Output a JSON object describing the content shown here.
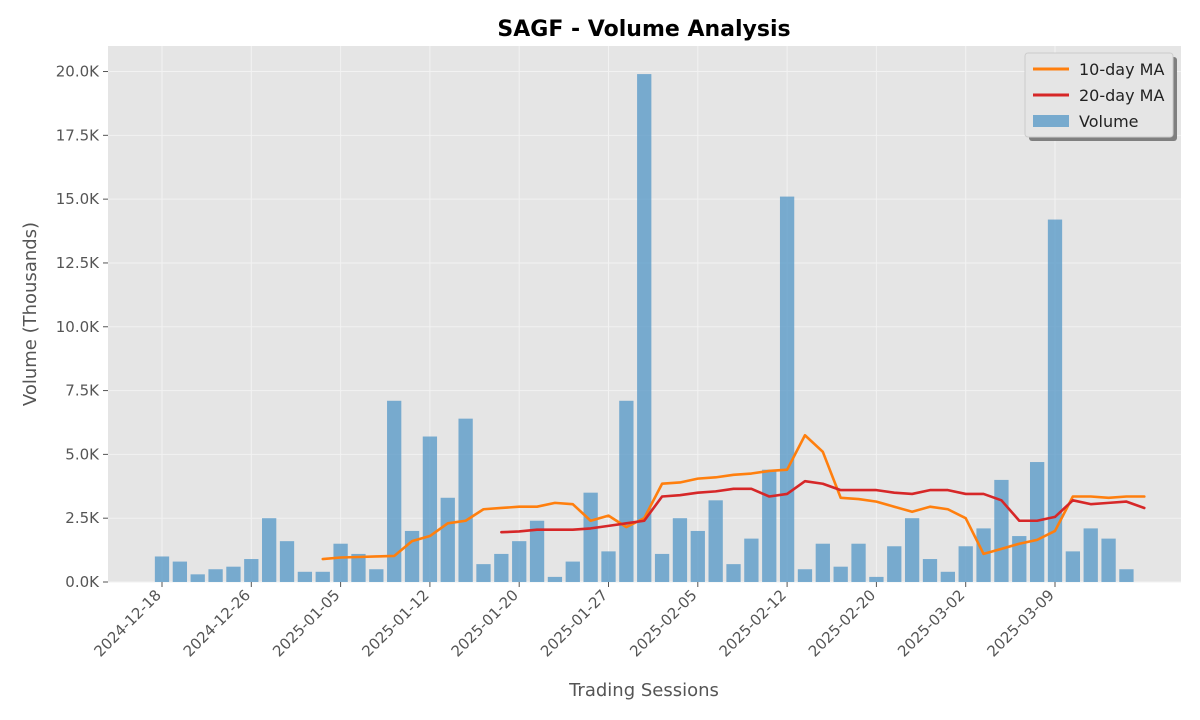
{
  "chart_data": {
    "type": "bar",
    "title": "SAGF - Volume Analysis",
    "xlabel": "Trading Sessions",
    "ylabel": "Volume (Thousands)",
    "ylim": [
      0,
      21000
    ],
    "grid": true,
    "legend_position": "top-right",
    "colors": {
      "background": "#e5e5e5",
      "grid": "#f2f2f2",
      "volume": "#5b9bc8",
      "ma10": "#ff7f0e",
      "ma20": "#d62728"
    },
    "y_ticks": [
      0,
      2500,
      5000,
      7500,
      10000,
      12500,
      15000,
      17500,
      20000
    ],
    "y_tick_labels": [
      "0.0K",
      "2.5K",
      "5.0K",
      "7.5K",
      "10.0K",
      "12.5K",
      "15.0K",
      "17.5K",
      "20.0K"
    ],
    "x_tick_labels": [
      {
        "index": 0,
        "label": "2024-12-18"
      },
      {
        "index": 5,
        "label": "2024-12-26"
      },
      {
        "index": 10,
        "label": "2025-01-05"
      },
      {
        "index": 15,
        "label": "2025-01-12"
      },
      {
        "index": 20,
        "label": "2025-01-20"
      },
      {
        "index": 25,
        "label": "2025-01-27"
      },
      {
        "index": 30,
        "label": "2025-02-05"
      },
      {
        "index": 35,
        "label": "2025-02-12"
      },
      {
        "index": 40,
        "label": "2025-02-20"
      },
      {
        "index": 45,
        "label": "2025-03-02"
      },
      {
        "index": 50,
        "label": "2025-03-09"
      }
    ],
    "series": [
      {
        "name": "Volume",
        "kind": "bar",
        "values": [
          1000,
          800,
          300,
          500,
          600,
          900,
          2500,
          1600,
          400,
          400,
          1500,
          1100,
          500,
          7100,
          2000,
          5700,
          3300,
          6400,
          700,
          1100,
          1600,
          2400,
          200,
          800,
          3500,
          1200,
          7100,
          19900,
          1100,
          2500,
          2000,
          3200,
          700,
          1700,
          4400,
          15100,
          500,
          1500,
          600,
          1500,
          200,
          1400,
          2500,
          900,
          400,
          1400,
          2100,
          4000,
          1800,
          4700,
          14200,
          1200,
          2100,
          1700,
          500
        ]
      },
      {
        "name": "10-day MA",
        "kind": "line",
        "start_index": 9,
        "values": [
          900,
          960,
          980,
          1000,
          1020,
          1600,
          1800,
          2300,
          2400,
          2850,
          2900,
          2950,
          2950,
          3100,
          3050,
          2400,
          2600,
          2150,
          2500,
          3850,
          3900,
          4050,
          4100,
          4200,
          4250,
          4350,
          4400,
          5750,
          5100,
          3300,
          3250,
          3150,
          2950,
          2750,
          2950,
          2850,
          2500,
          1100,
          1300,
          1500,
          1650,
          2000,
          3350,
          3350,
          3300,
          3350,
          3350
        ]
      },
      {
        "name": "20-day MA",
        "kind": "line",
        "start_index": 19,
        "values": [
          1950,
          1980,
          2050,
          2050,
          2050,
          2100,
          2200,
          2300,
          2400,
          3350,
          3400,
          3500,
          3550,
          3650,
          3650,
          3350,
          3450,
          3950,
          3850,
          3600,
          3600,
          3600,
          3500,
          3450,
          3600,
          3600,
          3450,
          3450,
          3200,
          2400,
          2400,
          2550,
          3200,
          3050,
          3100,
          3150,
          2900
        ]
      }
    ]
  }
}
